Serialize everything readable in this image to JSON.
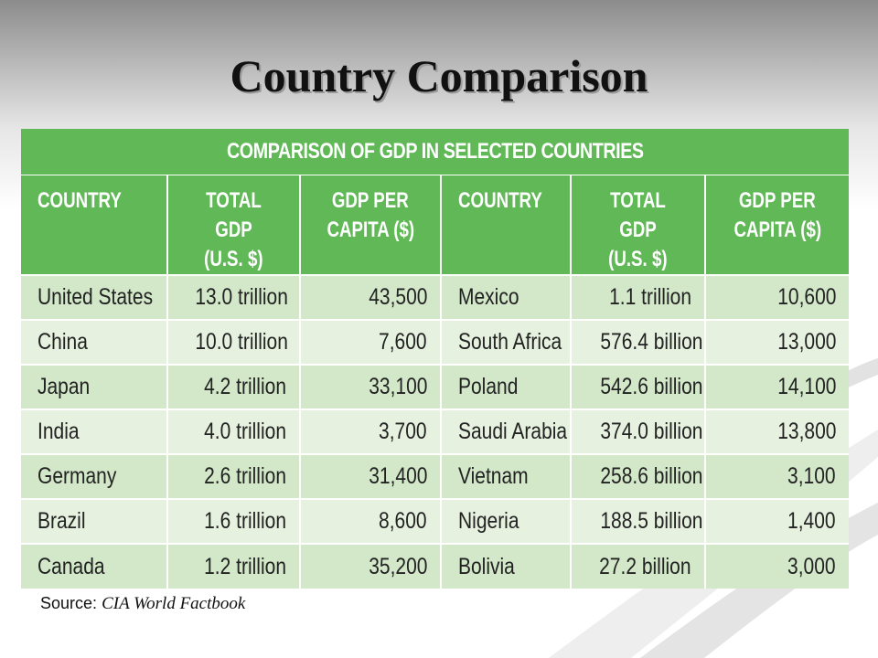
{
  "slide": {
    "title": "Country Comparison",
    "source_label": "Source:",
    "source_name": "CIA World Factbook"
  },
  "table": {
    "caption": "COMPARISON OF GDP IN SELECTED COUNTRIES",
    "headers": [
      "COUNTRY",
      "TOTAL GDP (U.S. $)",
      "GDP PER CAPITA ($)",
      "COUNTRY",
      "TOTAL GDP (U.S. $)",
      "GDP PER CAPITA ($)"
    ],
    "header_lines": [
      [
        "COUNTRY"
      ],
      [
        "TOTAL GDP",
        "(U.S. $)"
      ],
      [
        "GDP PER",
        "CAPITA ($)"
      ],
      [
        "COUNTRY"
      ],
      [
        "TOTAL GDP",
        "(U.S. $)"
      ],
      [
        "GDP PER",
        "CAPITA ($)"
      ]
    ],
    "rows": [
      [
        "United States",
        "13.0 trillion",
        "43,500",
        "Mexico",
        "1.1 trillion",
        "10,600"
      ],
      [
        "China",
        "10.0 trillion",
        "7,600",
        "South Africa",
        "576.4 billion",
        "13,000"
      ],
      [
        "Japan",
        "4.2 trillion",
        "33,100",
        "Poland",
        "542.6 billion",
        "14,100"
      ],
      [
        "India",
        "4.0 trillion",
        "3,700",
        "Saudi Arabia",
        "374.0 billion",
        "13,800"
      ],
      [
        "Germany",
        "2.6 trillion",
        "31,400",
        "Vietnam",
        "258.6 billion",
        "3,100"
      ],
      [
        "Brazil",
        "1.6 trillion",
        "8,600",
        "Nigeria",
        "188.5 billion",
        "1,400"
      ],
      [
        "Canada",
        "1.2 trillion",
        "35,200",
        "Bolivia",
        "27.2 billion",
        "3,000"
      ]
    ]
  },
  "colors": {
    "header_green": "#61b857",
    "row_dark": "#d2e8c9",
    "row_light": "#e6f2df"
  }
}
